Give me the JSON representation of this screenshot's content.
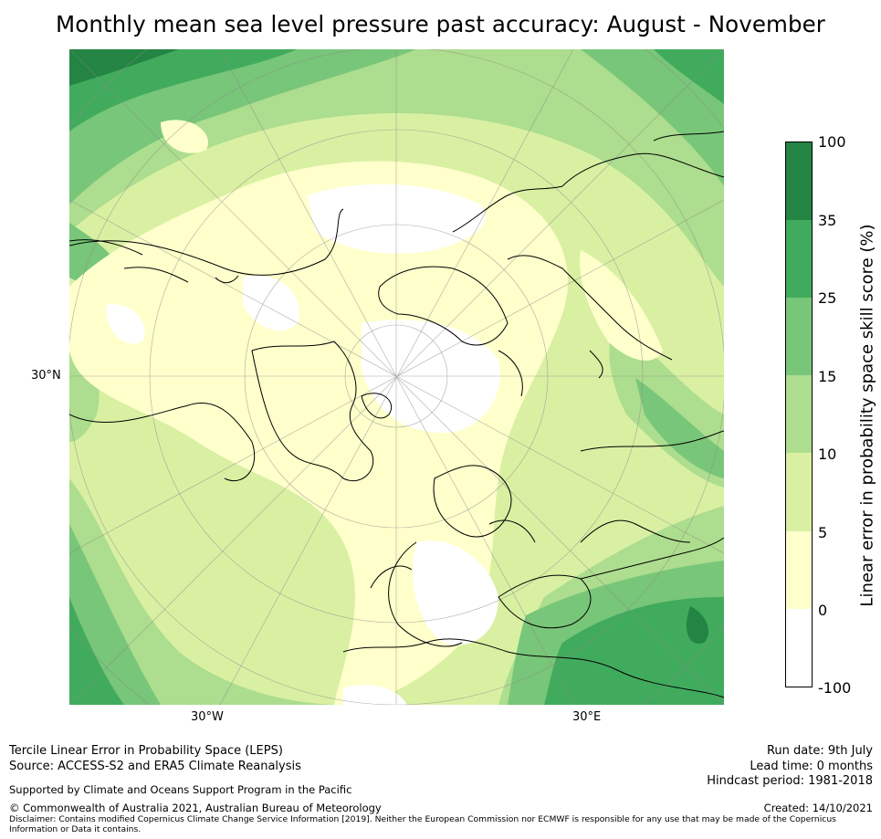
{
  "title": "Monthly mean sea level pressure past accuracy: August - November",
  "map": {
    "lat_label": "30°N",
    "lon_labels": [
      "30°W",
      "30°E"
    ],
    "colors": {
      "band_neg100_0": "#ffffff",
      "band_0_5": "#ffffcc",
      "band_5_10": "#d9f0a3",
      "band_10_15": "#addd8e",
      "band_15_25": "#78c679",
      "band_25_35": "#41ab5d",
      "band_35_100": "#238443",
      "coastline": "#000000",
      "graticule": "#8a8a8a"
    }
  },
  "colorbar": {
    "label": "Linear error in probability space skill score (%)",
    "ticks": [
      "100",
      "35",
      "25",
      "15",
      "10",
      "5",
      "0",
      "-100"
    ],
    "bands": [
      {
        "from": 35,
        "to": 100,
        "color": "#238443"
      },
      {
        "from": 25,
        "to": 35,
        "color": "#41ab5d"
      },
      {
        "from": 15,
        "to": 25,
        "color": "#78c679"
      },
      {
        "from": 10,
        "to": 15,
        "color": "#addd8e"
      },
      {
        "from": 5,
        "to": 10,
        "color": "#d9f0a3"
      },
      {
        "from": 0,
        "to": 5,
        "color": "#ffffcc"
      },
      {
        "from": -100,
        "to": 0,
        "color": "#ffffff"
      }
    ]
  },
  "footer": {
    "method": "Tercile Linear Error in Probability Space (LEPS)",
    "source": "Source: ACCESS-S2 and ERA5 Climate Reanalysis",
    "support": "Supported by Climate and Oceans Support Program in the Pacific",
    "copyright": "© Commonwealth of Australia 2021, Australian Bureau of Meteorology",
    "disclaimer": "Disclaimer: Contains modified Copernicus Climate Change Service Information [2019]. Neither the European Commission nor ECMWF is responsible for any use that may be made of the Copernicus Information or Data it contains.",
    "run_date": "Run date: 9th July",
    "lead_time": "Lead time: 0 months",
    "hindcast": "Hindcast period: 1981-2018",
    "created": "Created: 14/10/2021"
  }
}
